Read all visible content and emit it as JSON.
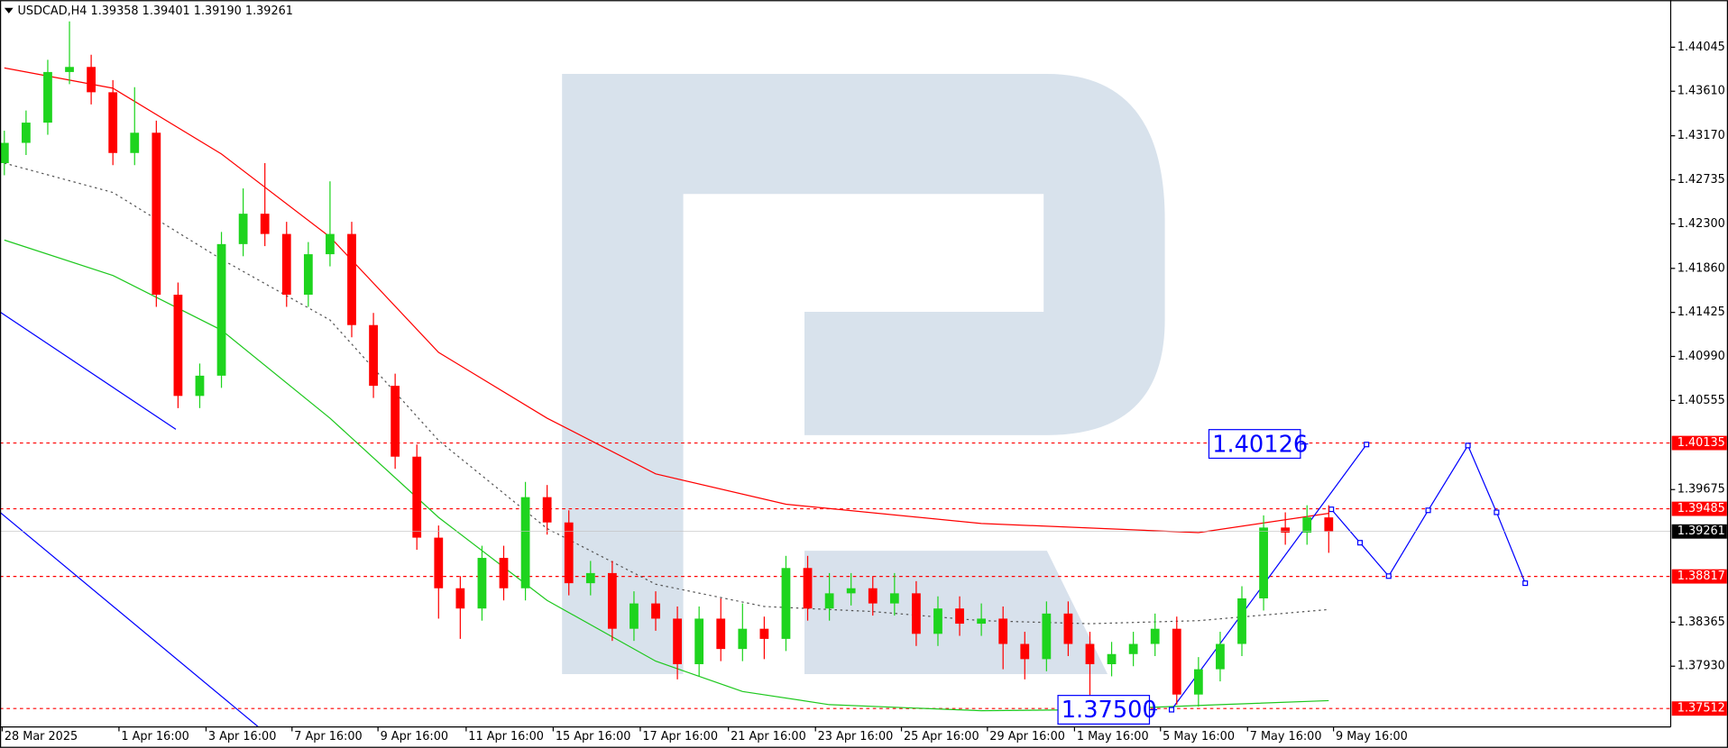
{
  "chart_data": {
    "type": "candlestick",
    "title": "USDCAD,H4 1.39358 1.39401 1.39190 1.39261",
    "x": [
      0,
      1,
      2,
      3,
      4,
      5,
      6,
      7,
      8,
      9,
      10,
      11,
      12,
      13,
      14,
      15,
      16,
      17,
      18,
      19,
      20,
      21,
      22,
      23,
      24,
      25,
      26,
      27,
      28,
      29,
      30,
      31,
      32,
      33,
      34,
      35,
      36,
      37,
      38,
      39,
      40,
      41,
      42,
      43,
      44,
      45,
      46,
      47,
      48,
      49,
      50,
      51,
      52,
      53,
      54,
      55,
      56,
      57,
      58,
      59,
      60,
      61
    ],
    "open": [
      1.429,
      1.431,
      1.433,
      1.438,
      1.4385,
      1.436,
      1.43,
      1.432,
      1.416,
      1.406,
      1.408,
      1.421,
      1.424,
      1.422,
      1.416,
      1.42,
      1.422,
      1.413,
      1.407,
      1.4,
      1.392,
      1.387,
      1.385,
      1.39,
      1.387,
      1.396,
      1.3935,
      1.3875,
      1.3885,
      1.383,
      1.3855,
      1.384,
      1.3795,
      1.384,
      1.381,
      1.383,
      1.382,
      1.389,
      1.385,
      1.3865,
      1.387,
      1.3855,
      1.3865,
      1.3825,
      1.385,
      1.3835,
      1.384,
      1.3815,
      1.38,
      1.3845,
      1.3815,
      1.3795,
      1.3805,
      1.3815,
      1.383,
      1.3765,
      1.379,
      1.3815,
      1.386,
      1.393,
      1.3925,
      1.394
    ],
    "high": [
      1.4322,
      1.4342,
      1.4392,
      1.443,
      1.4397,
      1.4372,
      1.4365,
      1.4332,
      1.4172,
      1.4092,
      1.4222,
      1.4265,
      1.429,
      1.4232,
      1.4212,
      1.4272,
      1.4232,
      1.4142,
      1.4082,
      1.4012,
      1.3932,
      1.3882,
      1.3912,
      1.3912,
      1.3975,
      1.3972,
      1.3947,
      1.3897,
      1.3897,
      1.3867,
      1.3867,
      1.3852,
      1.3852,
      1.386,
      1.3855,
      1.3842,
      1.3902,
      1.3902,
      1.3885,
      1.3885,
      1.3882,
      1.3885,
      1.3877,
      1.3862,
      1.3862,
      1.3855,
      1.3852,
      1.3827,
      1.3857,
      1.3857,
      1.3827,
      1.3817,
      1.3827,
      1.3845,
      1.3842,
      1.3802,
      1.3827,
      1.3872,
      1.3942,
      1.3945,
      1.3952,
      1.3952
    ],
    "low": [
      1.4278,
      1.4298,
      1.4318,
      1.4368,
      1.4348,
      1.4288,
      1.4288,
      1.4148,
      1.4048,
      1.4048,
      1.4068,
      1.4198,
      1.4208,
      1.4148,
      1.4148,
      1.4188,
      1.4118,
      1.4058,
      1.3988,
      1.3908,
      1.384,
      1.382,
      1.3838,
      1.3858,
      1.3858,
      1.3923,
      1.3863,
      1.3863,
      1.3818,
      1.3818,
      1.3828,
      1.378,
      1.3783,
      1.3798,
      1.3798,
      1.38,
      1.3808,
      1.3838,
      1.3838,
      1.3853,
      1.3843,
      1.3843,
      1.3813,
      1.3813,
      1.3823,
      1.3823,
      1.379,
      1.378,
      1.3788,
      1.3803,
      1.376,
      1.3783,
      1.3793,
      1.3803,
      1.3755,
      1.3753,
      1.3778,
      1.3803,
      1.3848,
      1.3913,
      1.3913,
      1.3905
    ],
    "close": [
      1.431,
      1.433,
      1.438,
      1.4385,
      1.436,
      1.43,
      1.432,
      1.416,
      1.406,
      1.408,
      1.421,
      1.424,
      1.422,
      1.416,
      1.42,
      1.422,
      1.413,
      1.407,
      1.4,
      1.392,
      1.387,
      1.385,
      1.39,
      1.387,
      1.396,
      1.3935,
      1.3875,
      1.3885,
      1.383,
      1.3855,
      1.384,
      1.3795,
      1.384,
      1.381,
      1.383,
      1.382,
      1.389,
      1.385,
      1.3865,
      1.387,
      1.3855,
      1.3865,
      1.3825,
      1.385,
      1.3835,
      1.384,
      1.3815,
      1.38,
      1.3845,
      1.3815,
      1.3795,
      1.3805,
      1.3815,
      1.383,
      1.3765,
      1.379,
      1.3815,
      1.386,
      1.393,
      1.3925,
      1.394,
      1.3926
    ],
    "up_color": "#1ed41e",
    "down_color": "#ff0000",
    "lines": [
      {
        "color": "#ff0000",
        "style": "solid",
        "x": [
          0,
          5,
          10,
          15,
          20,
          25,
          30,
          36,
          45,
          55,
          61
        ],
        "values": [
          1.4384,
          1.4364,
          1.4299,
          1.4217,
          1.4103,
          1.4038,
          1.3983,
          1.3953,
          1.3934,
          1.3925,
          1.3944
        ]
      },
      {
        "color": "#1ec81e",
        "style": "solid",
        "x": [
          0,
          5,
          10,
          15,
          20,
          25,
          30,
          34,
          38,
          45,
          50,
          56,
          61
        ],
        "values": [
          1.4214,
          1.4179,
          1.4125,
          1.4038,
          1.394,
          1.3858,
          1.3798,
          1.3768,
          1.3755,
          1.3749,
          1.375,
          1.3755,
          1.3759
        ]
      },
      {
        "color": "#555555",
        "style": "dotted",
        "x": [
          0,
          5,
          10,
          15,
          20,
          25,
          30,
          35,
          40,
          45,
          50,
          55,
          61
        ],
        "values": [
          1.429,
          1.4261,
          1.4195,
          1.4135,
          1.4016,
          1.3929,
          1.3874,
          1.3852,
          1.3847,
          1.3838,
          1.3835,
          1.3838,
          1.3849
        ]
      },
      {
        "color": "#0000ff",
        "style": "solid",
        "x": [
          -0.2,
          7.9
        ],
        "values": [
          1.4143,
          1.4027
        ]
      },
      {
        "color": "#0000ff",
        "style": "solid",
        "x": [
          -0.2,
          11.7
        ],
        "values": [
          1.3945,
          1.3733
        ]
      },
      {
        "color": "#0000ff",
        "style": "forecast",
        "x": [
          53.76,
          62.74
        ],
        "values": [
          1.375,
          1.4012
        ]
      },
      {
        "color": "#0000ff",
        "style": "forecast",
        "x": [
          61.12,
          62.44,
          63.76,
          65.58,
          67.41,
          68.73,
          70.05
        ],
        "values": [
          1.3948,
          1.3915,
          1.3882,
          1.3947,
          1.4011,
          1.3945,
          1.3875
        ]
      }
    ],
    "xlim": [
      -0.2,
      76.75
    ],
    "xticks": [
      {
        "value": -0.1,
        "label": "28 Mar 2025"
      },
      {
        "value": 5.28,
        "label": "1 Apr 16:00"
      },
      {
        "value": 9.29,
        "label": "3 Apr 16:00"
      },
      {
        "value": 13.25,
        "label": "7 Apr 16:00"
      },
      {
        "value": 17.21,
        "label": "9 Apr 16:00"
      },
      {
        "value": 21.27,
        "label": "11 Apr 16:00"
      },
      {
        "value": 25.28,
        "label": "15 Apr 16:00"
      },
      {
        "value": 29.29,
        "label": "17 Apr 16:00"
      },
      {
        "value": 33.35,
        "label": "21 Apr 16:00"
      },
      {
        "value": 37.36,
        "label": "23 Apr 16:00"
      },
      {
        "value": 41.32,
        "label": "25 Apr 16:00"
      },
      {
        "value": 45.28,
        "label": "29 Apr 16:00"
      },
      {
        "value": 49.29,
        "label": "1 May 16:00"
      },
      {
        "value": 53.25,
        "label": "5 May 16:00"
      },
      {
        "value": 57.26,
        "label": "7 May 16:00"
      },
      {
        "value": 61.22,
        "label": "9 May 16:00"
      }
    ],
    "ylim": [
      1.3733,
      1.4451
    ],
    "yticks": [
      1.44045,
      {
        "value": 1.4361,
        "label": "1.43610"
      },
      {
        "value": 1.4317,
        "label": "1.43170"
      },
      1.42735,
      {
        "value": 1.423,
        "label": "1.42300"
      },
      {
        "value": 1.4186,
        "label": "1.41860"
      },
      1.41425,
      {
        "value": 1.4099,
        "label": "1.40990"
      },
      1.40555,
      1.39675,
      1.38365,
      {
        "value": 1.3793,
        "label": "1.37930"
      }
    ],
    "levels": [
      1.40135,
      1.39485,
      1.38817,
      1.37512
    ],
    "level_color": "#ff0000",
    "current": 1.39261,
    "annotations": [
      {
        "value": 1.40126,
        "label": "1.40126"
      },
      {
        "value": 1.375,
        "label": "1.37500"
      }
    ],
    "annotation_color": "#0000ff"
  }
}
